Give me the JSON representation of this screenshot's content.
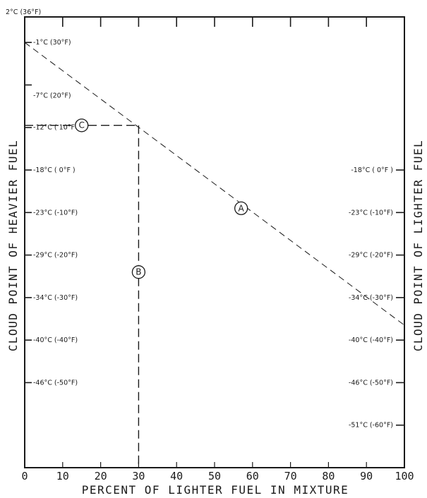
{
  "chart_data": {
    "type": "line",
    "xlabel": "PERCENT OF LIGHTER FUEL IN MIXTURE",
    "ylabel_left": "CLOUD POINT OF HEAVIER FUEL",
    "ylabel_right": "CLOUD POINT OF LIGHTER FUEL",
    "x_ticks": [
      "0",
      "10",
      "20",
      "30",
      "40",
      "50",
      "60",
      "70",
      "80",
      "90",
      "100"
    ],
    "xlim": [
      0,
      100
    ],
    "ylim_F": [
      -70,
      36
    ],
    "top_label": "2°C (36°F)",
    "left_ticks": [
      {
        "f": 30,
        "label": "-1°C (30°F)"
      },
      {
        "f": 20,
        "label": "-7°C (20°F)"
      },
      {
        "f": 10,
        "label": "-12°C ( 10°F )"
      },
      {
        "f": 0,
        "label": "-18°C ( 0°F )"
      },
      {
        "f": -10,
        "label": "-23°C (-10°F)"
      },
      {
        "f": -20,
        "label": "-29°C (-20°F)"
      },
      {
        "f": -30,
        "label": "-34°C (-30°F)"
      },
      {
        "f": -40,
        "label": "-40°C (-40°F)"
      },
      {
        "f": -50,
        "label": "-46°C (-50°F)"
      }
    ],
    "right_ticks": [
      {
        "f": 0,
        "label": "-18°C ( 0°F )"
      },
      {
        "f": -10,
        "label": "-23°C (-10°F)"
      },
      {
        "f": -20,
        "label": "-29°C (-20°F)"
      },
      {
        "f": -30,
        "label": "-34°C (-30°F)"
      },
      {
        "f": -40,
        "label": "-40°C (-40°F)"
      },
      {
        "f": -50,
        "label": "-46°C (-50°F)"
      },
      {
        "f": -60,
        "label": "-51°C (-60°F)"
      }
    ],
    "series": [
      {
        "label": "A",
        "x": [
          0,
          100
        ],
        "y": [
          30,
          -36.5
        ]
      }
    ],
    "guides": [
      {
        "label": "B",
        "points": [
          [
            30,
            10.5
          ],
          [
            30,
            -70
          ]
        ]
      },
      {
        "label": "C",
        "points": [
          [
            0,
            10.5
          ],
          [
            30,
            10.5
          ]
        ]
      }
    ],
    "annotations": [
      {
        "text": "A",
        "x": 57,
        "y": -9
      },
      {
        "text": "B",
        "x": 30,
        "y": -24
      },
      {
        "text": "C",
        "x": 15,
        "y": 10.5
      }
    ]
  }
}
